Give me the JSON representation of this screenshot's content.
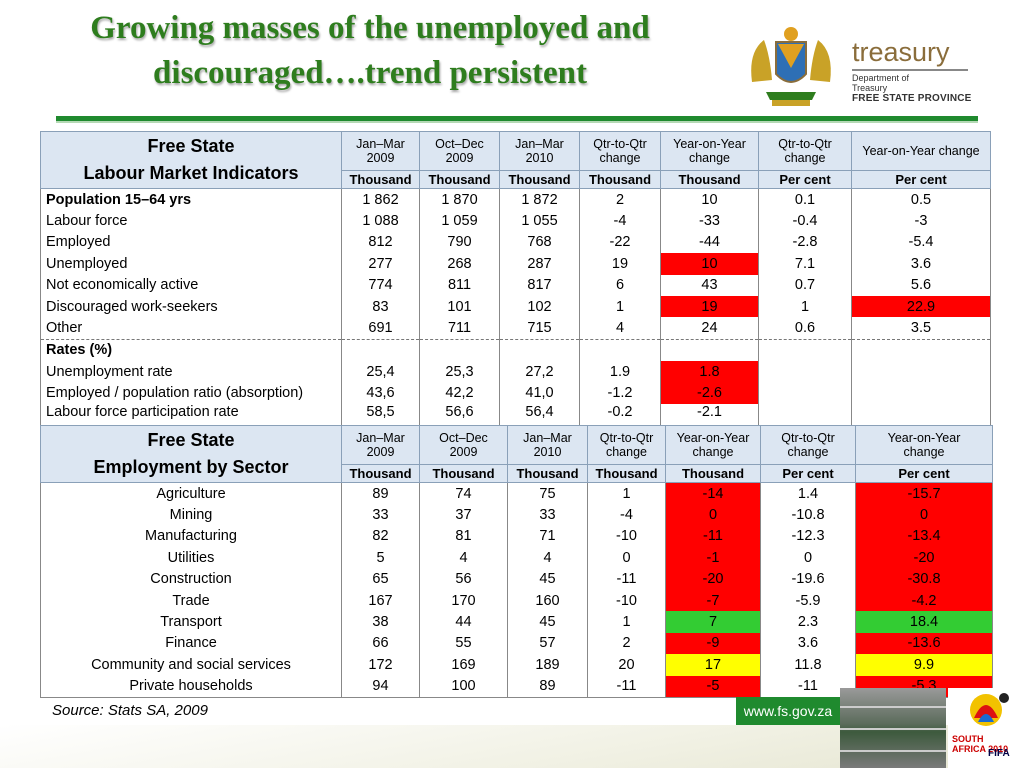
{
  "title": {
    "line1": "Growing masses of the unemployed and",
    "line2": "discouraged….trend persistent"
  },
  "brand": {
    "word": "treasury",
    "sub1": "Department of",
    "sub2": "Treasury",
    "sub3": "FREE STATE PROVINCE"
  },
  "colors": {
    "green": "#2e7d1e",
    "red": "#ff0000",
    "highlight_green": "#33cc33",
    "yellow": "#ffff00",
    "header_bg": "#dce6f2"
  },
  "table1": {
    "title1": "Free State",
    "title2": "Labour Market Indicators",
    "headers": [
      [
        "Jan–Mar",
        "2009"
      ],
      [
        "Oct–Dec",
        "2009"
      ],
      [
        "Jan–Mar",
        "2010"
      ],
      [
        "Qtr-to-Qtr",
        "change"
      ],
      [
        "Year-on-Year",
        "change"
      ],
      [
        "Qtr-to-Qtr",
        "change"
      ],
      [
        "Year-on-Year change",
        ""
      ]
    ],
    "units": [
      "Thousand",
      "Thousand",
      "Thousand",
      "Thousand",
      "Thousand",
      "Per cent",
      "Per cent"
    ],
    "rows": [
      {
        "label": "Population 15–64 yrs",
        "values": [
          "1 862",
          "1 870",
          "1 872",
          "2",
          "10",
          "0.1",
          "0.5"
        ]
      },
      {
        "label": "Labour force",
        "values": [
          "1 088",
          "1 059",
          "1 055",
          "-4",
          "-33",
          "-0.4",
          "-3"
        ]
      },
      {
        "label": "Employed",
        "values": [
          "812",
          "790",
          "768",
          "-22",
          "-44",
          "-2.8",
          "-5.4"
        ]
      },
      {
        "label": "Unemployed",
        "values": [
          "277",
          "268",
          "287",
          "19",
          "10",
          "7.1",
          "3.6"
        ]
      },
      {
        "label": "Not economically active",
        "values": [
          "774",
          "811",
          "817",
          "6",
          "43",
          "0.7",
          "5.6"
        ]
      },
      {
        "label": "Discouraged work-seekers",
        "values": [
          "83",
          "101",
          "102",
          "1",
          "19",
          "1",
          "22.9"
        ]
      },
      {
        "label": "Other",
        "values": [
          "691",
          "711",
          "715",
          "4",
          "24",
          "0.6",
          "3.5"
        ]
      }
    ],
    "rates_label": "Rates (%)",
    "rates": [
      {
        "label": "Unemployment rate",
        "values": [
          "25,4",
          "25,3",
          "27,2",
          "1.9",
          "1.8",
          "",
          ""
        ]
      },
      {
        "label": "Employed / population ratio (absorption)",
        "values": [
          "43,6",
          "42,2",
          "41,0",
          "-1.2",
          "-2.6",
          "",
          ""
        ]
      },
      {
        "label": "Labour force participation rate",
        "values": [
          "58,5",
          "56,6",
          "56,4",
          "-0.2",
          "-2.1",
          "",
          ""
        ]
      }
    ]
  },
  "table2": {
    "title1": "Free State",
    "title2": "Employment by Sector",
    "headers": [
      [
        "Jan–Mar",
        "2009"
      ],
      [
        "Oct–Dec",
        "2009"
      ],
      [
        "Jan–Mar",
        "2010"
      ],
      [
        "Qtr-to-Qtr",
        "change"
      ],
      [
        "Year-on-Year",
        "change"
      ],
      [
        "Qtr-to-Qtr",
        "change"
      ],
      [
        "Year-on-Year",
        "change"
      ]
    ],
    "units": [
      "Thousand",
      "Thousand",
      "Thousand",
      "Thousand",
      "Thousand",
      "Per cent",
      "Per cent"
    ],
    "rows": [
      {
        "label": "Agriculture",
        "values": [
          "89",
          "74",
          "75",
          "1",
          "-14",
          "1.4",
          "-15.7"
        ]
      },
      {
        "label": "Mining",
        "values": [
          "33",
          "37",
          "33",
          "-4",
          "0",
          "-10.8",
          "0"
        ]
      },
      {
        "label": "Manufacturing",
        "values": [
          "82",
          "81",
          "71",
          "-10",
          "-11",
          "-12.3",
          "-13.4"
        ]
      },
      {
        "label": "Utilities",
        "values": [
          "5",
          "4",
          "4",
          "0",
          "-1",
          "0",
          "-20"
        ]
      },
      {
        "label": "Construction",
        "values": [
          "65",
          "56",
          "45",
          "-11",
          "-20",
          "-19.6",
          "-30.8"
        ]
      },
      {
        "label": "Trade",
        "values": [
          "167",
          "170",
          "160",
          "-10",
          "-7",
          "-5.9",
          "-4.2"
        ]
      },
      {
        "label": "Transport",
        "values": [
          "38",
          "44",
          "45",
          "1",
          "7",
          "2.3",
          "18.4"
        ]
      },
      {
        "label": "Finance",
        "values": [
          "66",
          "55",
          "57",
          "2",
          "-9",
          "3.6",
          "-13.6"
        ]
      },
      {
        "label": "Community and social services",
        "values": [
          "172",
          "169",
          "189",
          "20",
          "17",
          "11.8",
          "9.9"
        ]
      },
      {
        "label": "Private households",
        "values": [
          "94",
          "100",
          "89",
          "-11",
          "-5",
          "-11",
          "-5.3"
        ]
      }
    ]
  },
  "source": "Source: Stats SA, 2009",
  "url": "www.fs.gov.za",
  "world_cup": {
    "text1": "SOUTH",
    "text2": "AFRICA 2010",
    "fifa": "FIFA"
  }
}
